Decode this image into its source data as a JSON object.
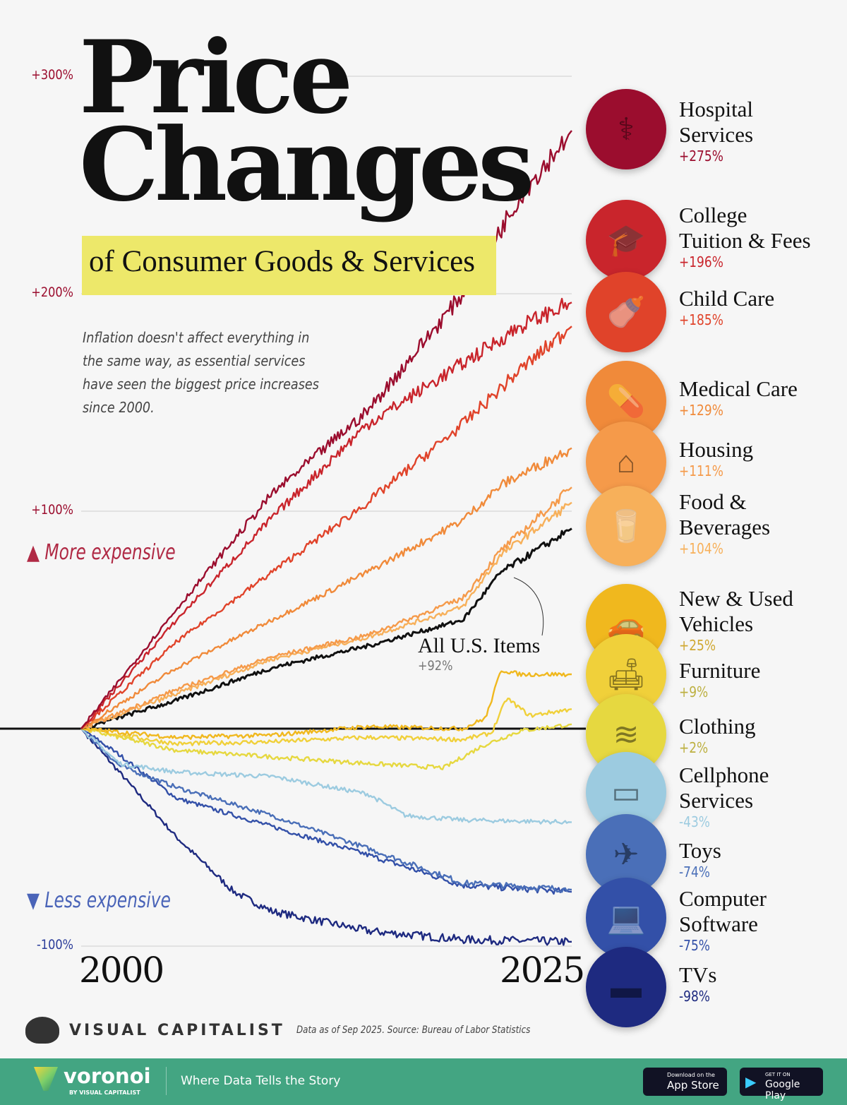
{
  "title_line1": "Price",
  "title_line2": "Changes",
  "subtitle": "of Consumer Goods & Services",
  "description": "Inflation doesn't affect everything in the same way, as essential services have seen the biggest price increases since 2000.",
  "more_expensive": "More expensive",
  "less_expensive": "Less expensive",
  "annotation": {
    "label": "All U.S. Items",
    "value": "+92%"
  },
  "source": "Data as of Sep 2025. Source: Bureau of Labor Statistics",
  "brand": "VISUAL CAPITALIST",
  "footer": {
    "logo": "voronoi",
    "logo_sub": "BY VISUAL CAPITALIST",
    "tagline": "Where Data Tells the Story",
    "app_store_small": "Download on the",
    "app_store": "App Store",
    "google_small": "GET IT ON",
    "google": "Google Play"
  },
  "chart_data": {
    "type": "line",
    "title": "Price Changes of Consumer Goods & Services",
    "x_ticks": [
      "2000",
      "2025"
    ],
    "y_ticks": [
      "+300%",
      "+200%",
      "+100%",
      "-100%"
    ],
    "ylim": [
      -100,
      300
    ],
    "xlim": [
      2000,
      2025.7
    ],
    "grid": true,
    "series": [
      {
        "name": "Hospital Services",
        "label": "+275%",
        "color": "#9b0d2e",
        "icon": "stethoscope-icon",
        "points": [
          [
            2000,
            0
          ],
          [
            2005,
            55
          ],
          [
            2010,
            108
          ],
          [
            2015,
            146
          ],
          [
            2020,
            200
          ],
          [
            2023,
            245
          ],
          [
            2025.7,
            275
          ]
        ]
      },
      {
        "name": "College Tuition & Fees",
        "label": "+196%",
        "color": "#c9252c",
        "icon": "graduation-cap-icon",
        "points": [
          [
            2000,
            0
          ],
          [
            2005,
            50
          ],
          [
            2010,
            97
          ],
          [
            2015,
            140
          ],
          [
            2020,
            168
          ],
          [
            2023,
            185
          ],
          [
            2025.7,
            196
          ]
        ]
      },
      {
        "name": "Child Care",
        "label": "+185%",
        "color": "#e0432a",
        "icon": "baby-bottle-icon",
        "points": [
          [
            2000,
            0
          ],
          [
            2005,
            40
          ],
          [
            2010,
            72
          ],
          [
            2015,
            104
          ],
          [
            2020,
            140
          ],
          [
            2023,
            165
          ],
          [
            2025.7,
            185
          ]
        ]
      },
      {
        "name": "Medical Care",
        "label": "+129%",
        "color": "#f08a3a",
        "icon": "pill-bottle-icon",
        "points": [
          [
            2000,
            0
          ],
          [
            2005,
            28
          ],
          [
            2010,
            50
          ],
          [
            2015,
            72
          ],
          [
            2020,
            96
          ],
          [
            2022,
            112
          ],
          [
            2025.7,
            129
          ]
        ]
      },
      {
        "name": "Housing",
        "label": "+111%",
        "color": "#f59a4a",
        "icon": "house-icon",
        "points": [
          [
            2000,
            0
          ],
          [
            2005,
            18
          ],
          [
            2010,
            33
          ],
          [
            2015,
            43
          ],
          [
            2020,
            60
          ],
          [
            2022,
            82
          ],
          [
            2025.7,
            111
          ]
        ]
      },
      {
        "name": "Food & Beverages",
        "label": "+104%",
        "color": "#f7b05a",
        "icon": "milk-bottle-icon",
        "points": [
          [
            2000,
            0
          ],
          [
            2005,
            16
          ],
          [
            2010,
            32
          ],
          [
            2015,
            42
          ],
          [
            2020,
            56
          ],
          [
            2022,
            80
          ],
          [
            2025.7,
            104
          ]
        ]
      },
      {
        "name": "All U.S. Items",
        "label": "+92%",
        "color": "#111111",
        "icon": "",
        "points": [
          [
            2000,
            0
          ],
          [
            2005,
            13
          ],
          [
            2010,
            28
          ],
          [
            2015,
            38
          ],
          [
            2020,
            50
          ],
          [
            2022,
            72
          ],
          [
            2025.7,
            92
          ]
        ]
      },
      {
        "name": "New & Used Vehicles",
        "label": "+25%",
        "color": "#f0b81e",
        "icon": "car-icon",
        "points": [
          [
            2000,
            0
          ],
          [
            2005,
            -4
          ],
          [
            2010,
            -3
          ],
          [
            2015,
            1
          ],
          [
            2020,
            0
          ],
          [
            2021.2,
            5
          ],
          [
            2022,
            27
          ],
          [
            2023,
            25
          ],
          [
            2025.7,
            25
          ]
        ]
      },
      {
        "name": "Furniture",
        "label": "+9%",
        "color": "#f0d03a",
        "icon": "armchair-icon",
        "points": [
          [
            2000,
            0
          ],
          [
            2005,
            -7
          ],
          [
            2010,
            -6
          ],
          [
            2015,
            -4
          ],
          [
            2020,
            -5
          ],
          [
            2021.5,
            -2
          ],
          [
            2022.3,
            14
          ],
          [
            2023.5,
            6
          ],
          [
            2025.7,
            9
          ]
        ]
      },
      {
        "name": "Clothing",
        "label": "+2%",
        "color": "#e6d840",
        "icon": "folded-clothes-icon",
        "points": [
          [
            2000,
            0
          ],
          [
            2005,
            -10
          ],
          [
            2010,
            -13
          ],
          [
            2015,
            -16
          ],
          [
            2019,
            -18
          ],
          [
            2021,
            -8
          ],
          [
            2023,
            -1
          ],
          [
            2025.7,
            2
          ]
        ]
      },
      {
        "name": "Cellphone Services",
        "label": "-43%",
        "color": "#9ccbe0",
        "icon": "smartphone-icon",
        "points": [
          [
            2000,
            0
          ],
          [
            2002,
            -16
          ],
          [
            2005,
            -20
          ],
          [
            2010,
            -22
          ],
          [
            2015,
            -30
          ],
          [
            2017,
            -40
          ],
          [
            2020,
            -42
          ],
          [
            2025.7,
            -43
          ]
        ]
      },
      {
        "name": "Toys",
        "label": "-74%",
        "color": "#4a6fb8",
        "icon": "toy-plane-icon",
        "points": [
          [
            2000,
            0
          ],
          [
            2002,
            -17
          ],
          [
            2005,
            -27
          ],
          [
            2010,
            -40
          ],
          [
            2015,
            -55
          ],
          [
            2020,
            -71
          ],
          [
            2025.7,
            -74
          ]
        ]
      },
      {
        "name": "Computer Software",
        "label": "-75%",
        "color": "#3350a8",
        "icon": "laptop-icon",
        "points": [
          [
            2000,
            0
          ],
          [
            2002,
            -12
          ],
          [
            2005,
            -32
          ],
          [
            2010,
            -45
          ],
          [
            2015,
            -58
          ],
          [
            2020,
            -72
          ],
          [
            2025.7,
            -75
          ]
        ]
      },
      {
        "name": "TVs",
        "label": "-98%",
        "color": "#1e2a80",
        "icon": "tv-icon",
        "points": [
          [
            2000,
            0
          ],
          [
            2002,
            -20
          ],
          [
            2005,
            -50
          ],
          [
            2008,
            -75
          ],
          [
            2010,
            -84
          ],
          [
            2015,
            -93
          ],
          [
            2020,
            -97
          ],
          [
            2025.7,
            -98
          ]
        ]
      }
    ]
  }
}
